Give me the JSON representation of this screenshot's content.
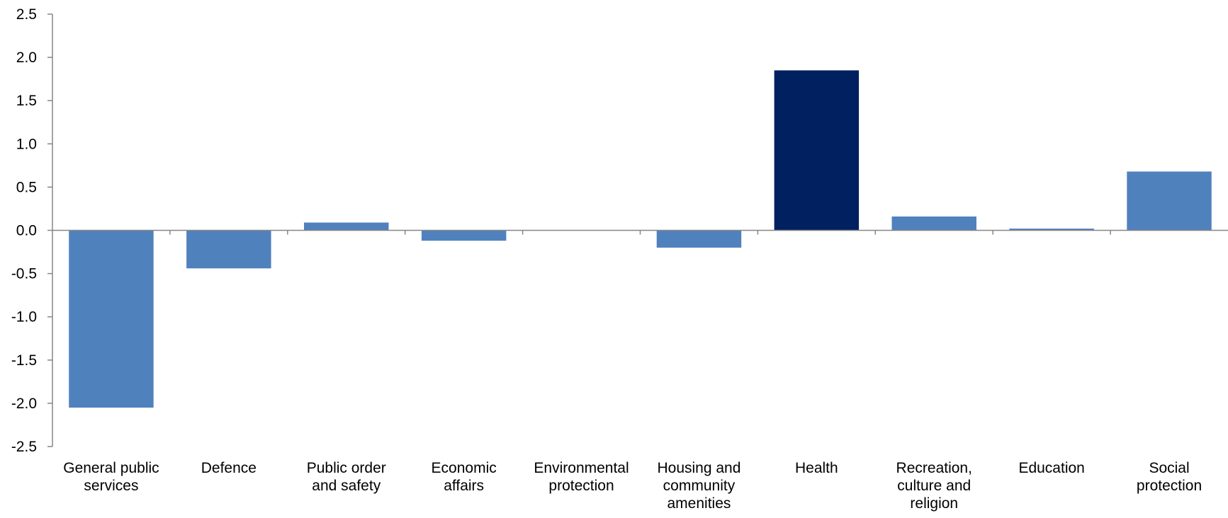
{
  "chart_data": {
    "type": "bar",
    "categories": [
      "General public services",
      "Defence",
      "Public order and safety",
      "Economic affairs",
      "Environmental protection",
      "Housing and community amenities",
      "Health",
      "Recreation, culture and religion",
      "Education",
      "Social protection"
    ],
    "category_label_lines": [
      [
        "General public",
        "services"
      ],
      [
        "Defence"
      ],
      [
        "Public order",
        "and safety"
      ],
      [
        "Economic",
        "affairs"
      ],
      [
        "Environmental",
        "protection"
      ],
      [
        "Housing and",
        "community",
        "amenities"
      ],
      [
        "Health"
      ],
      [
        "Recreation,",
        "culture and",
        "religion"
      ],
      [
        "Education"
      ],
      [
        "Social",
        "protection"
      ]
    ],
    "values": [
      -2.05,
      -0.44,
      0.09,
      -0.12,
      0.0,
      -0.2,
      1.85,
      0.16,
      0.02,
      0.68
    ],
    "highlight_index": 6,
    "ylim": [
      -2.5,
      2.5
    ],
    "yticks": [
      2.5,
      2.0,
      1.5,
      1.0,
      0.5,
      0.0,
      -0.5,
      -1.0,
      -1.5,
      -2.0,
      -2.5
    ],
    "title": "",
    "xlabel": "",
    "ylabel": "",
    "grid": false,
    "legend": "none",
    "colors": {
      "bar": "#4f81bd",
      "highlight": "#002060",
      "axis": "#868686"
    }
  }
}
